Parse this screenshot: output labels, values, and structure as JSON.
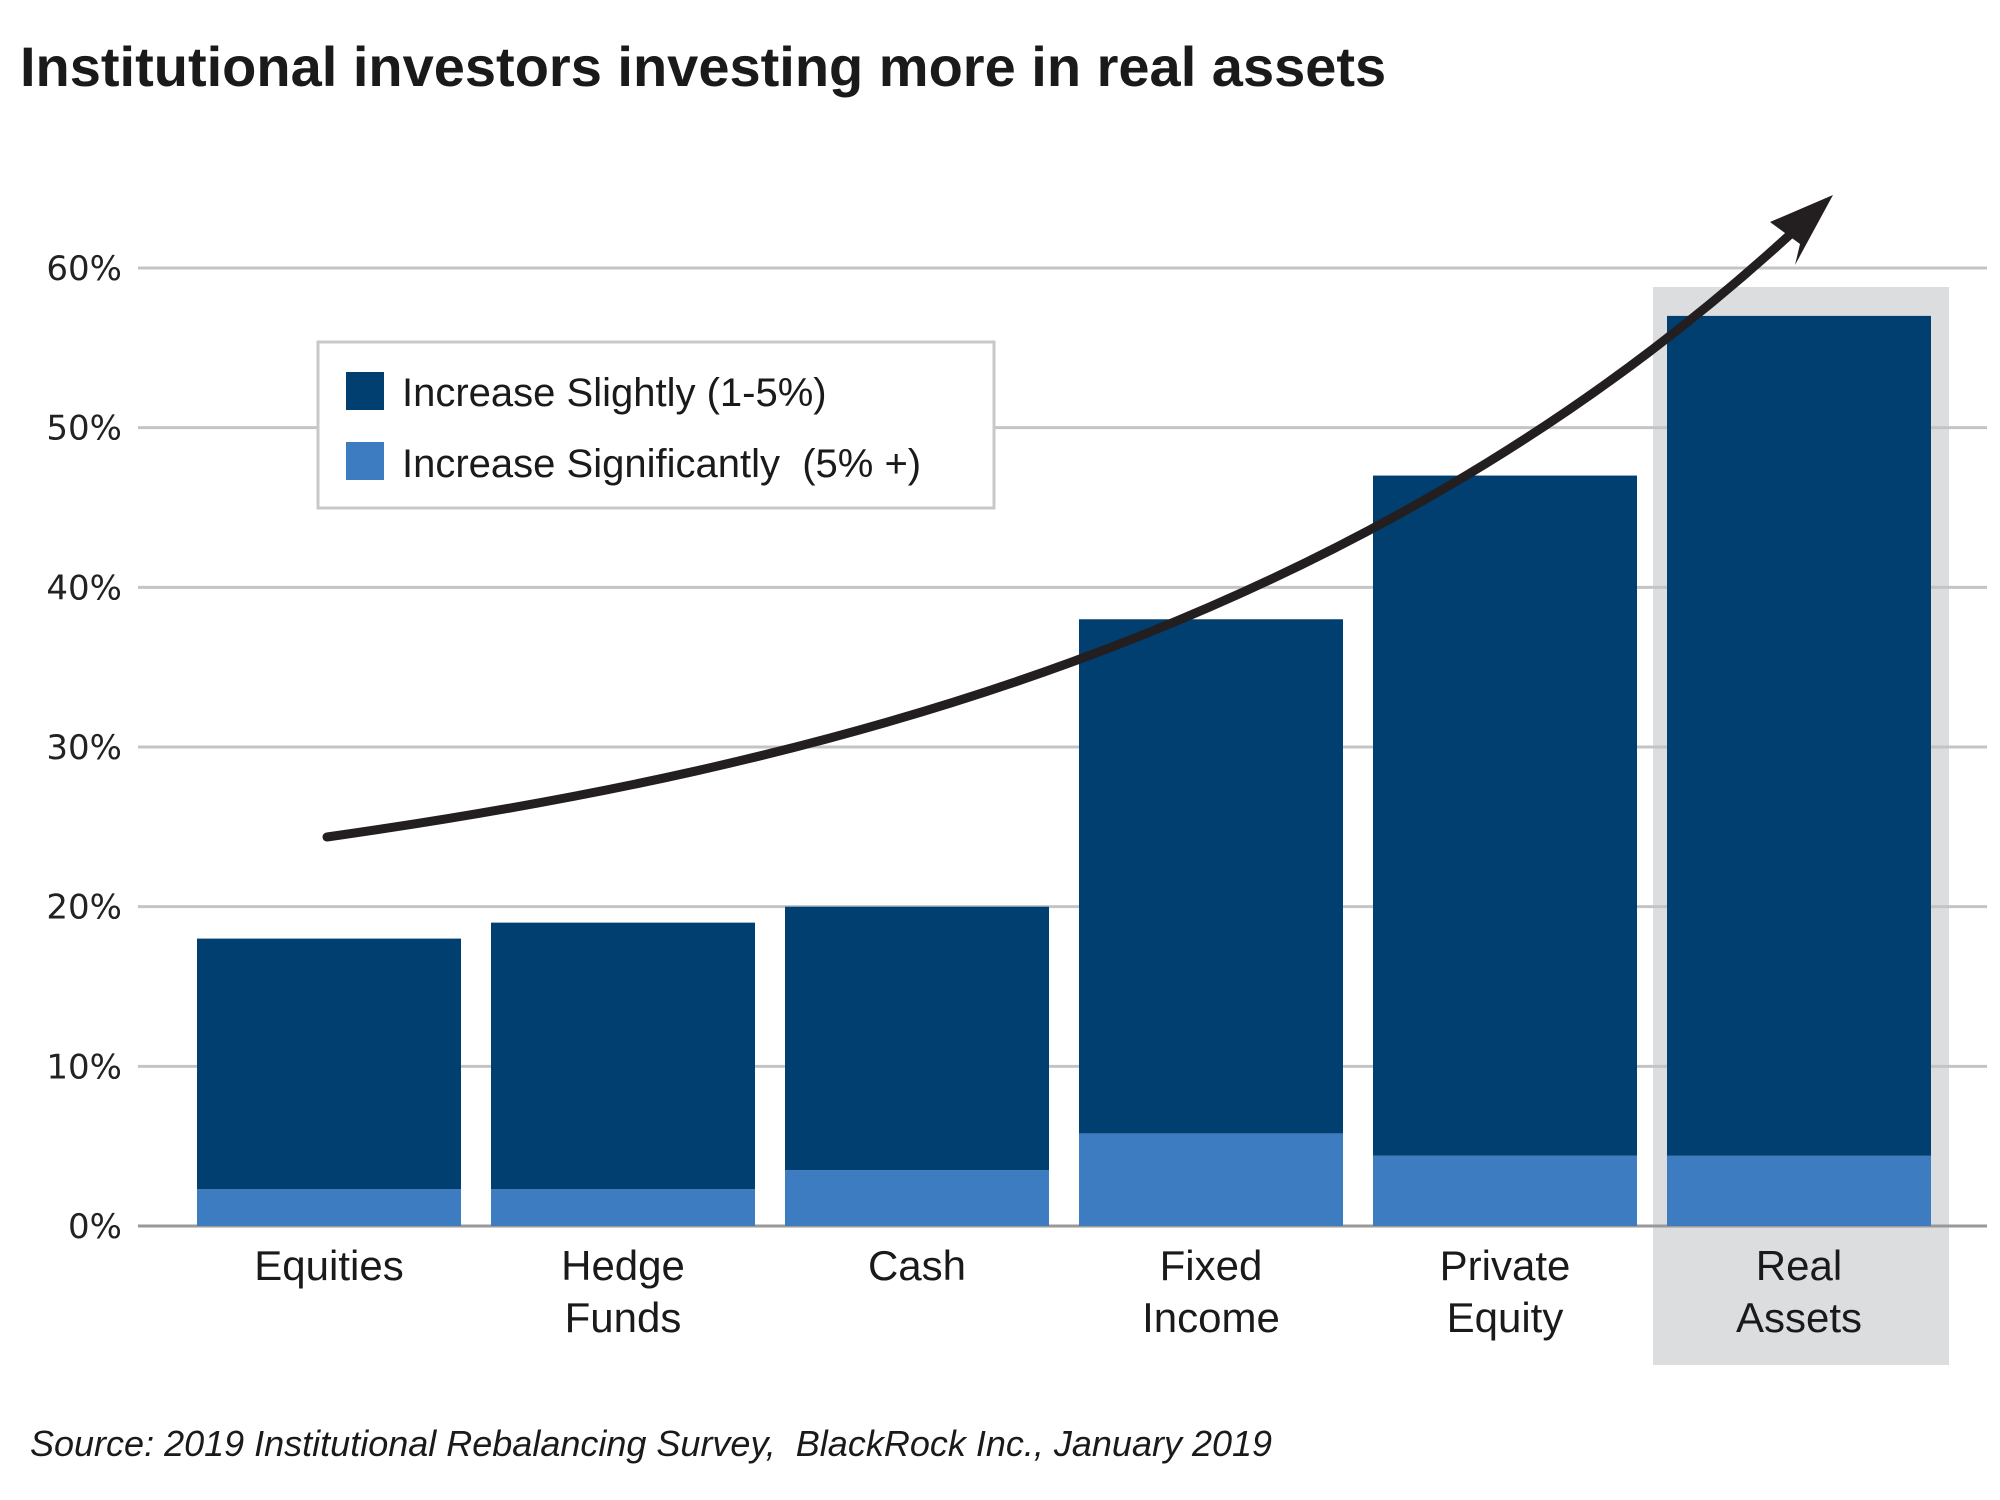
{
  "chart_data": {
    "type": "bar",
    "stacked": true,
    "title": "Institutional investors investing more in real assets",
    "categories": [
      [
        "Equities"
      ],
      [
        "Hedge",
        "Funds"
      ],
      [
        "Cash"
      ],
      [
        "Fixed",
        "Income"
      ],
      [
        "Private",
        "Equity"
      ],
      [
        "Real",
        "Assets"
      ]
    ],
    "series": [
      {
        "name": "Increase Significantly  (5% +)",
        "color": "#3d7cc0",
        "values": [
          2.3,
          2.3,
          3.5,
          5.8,
          4.4,
          4.4
        ]
      },
      {
        "name": "Increase Slightly (1-5%)",
        "color": "#003f6f",
        "values": [
          15.7,
          16.7,
          16.5,
          32.2,
          42.6,
          52.6
        ]
      }
    ],
    "totals": [
      18,
      19,
      20,
      38,
      47,
      57
    ],
    "ylim": [
      0,
      60
    ],
    "yticks": [
      "0%",
      "10%",
      "20%",
      "30%",
      "40%",
      "50%",
      "60%"
    ],
    "grid": true,
    "legend_placement": "top-left",
    "highlighted_category": "Real Assets",
    "annotation": "upward trend arrow",
    "source": "Source: 2019 Institutional Rebalancing Survey,  BlackRock Inc., January 2019"
  }
}
